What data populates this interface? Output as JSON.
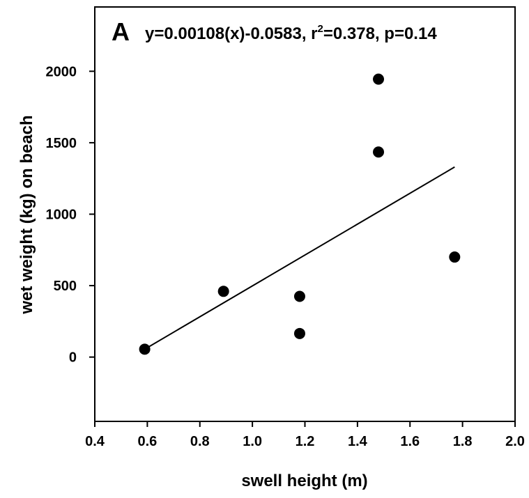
{
  "chart_data": {
    "type": "scatter",
    "panel_label": "A",
    "annotation": {
      "prefix": "y=0.00108(x)-0.0583, r",
      "superscript": "2",
      "suffix": "=0.378, p=0.14"
    },
    "xlabel": "swell height (m)",
    "ylabel": "wet weight (kg) on beach",
    "xlim": [
      0.4,
      2.0
    ],
    "ylim": [
      -450,
      2450
    ],
    "x_ticks": [
      0.4,
      0.6,
      0.8,
      1.0,
      1.2,
      1.4,
      1.6,
      1.8,
      2.0
    ],
    "x_tick_labels": [
      "0.4",
      "0.6",
      "0.8",
      "1.0",
      "1.2",
      "1.4",
      "1.6",
      "1.8",
      "2.0"
    ],
    "y_ticks": [
      0,
      500,
      1000,
      1500,
      2000
    ],
    "y_tick_labels": [
      "0",
      "500",
      "1000",
      "1500",
      "2000"
    ],
    "points": [
      {
        "x": 0.59,
        "y": 55
      },
      {
        "x": 0.89,
        "y": 460
      },
      {
        "x": 1.18,
        "y": 425
      },
      {
        "x": 1.18,
        "y": 165
      },
      {
        "x": 1.48,
        "y": 1945
      },
      {
        "x": 1.48,
        "y": 1435
      },
      {
        "x": 1.77,
        "y": 700
      }
    ],
    "fit_line": {
      "x": [
        0.59,
        1.77
      ],
      "y": [
        55,
        1330
      ]
    },
    "grid": false,
    "legend": "none"
  }
}
